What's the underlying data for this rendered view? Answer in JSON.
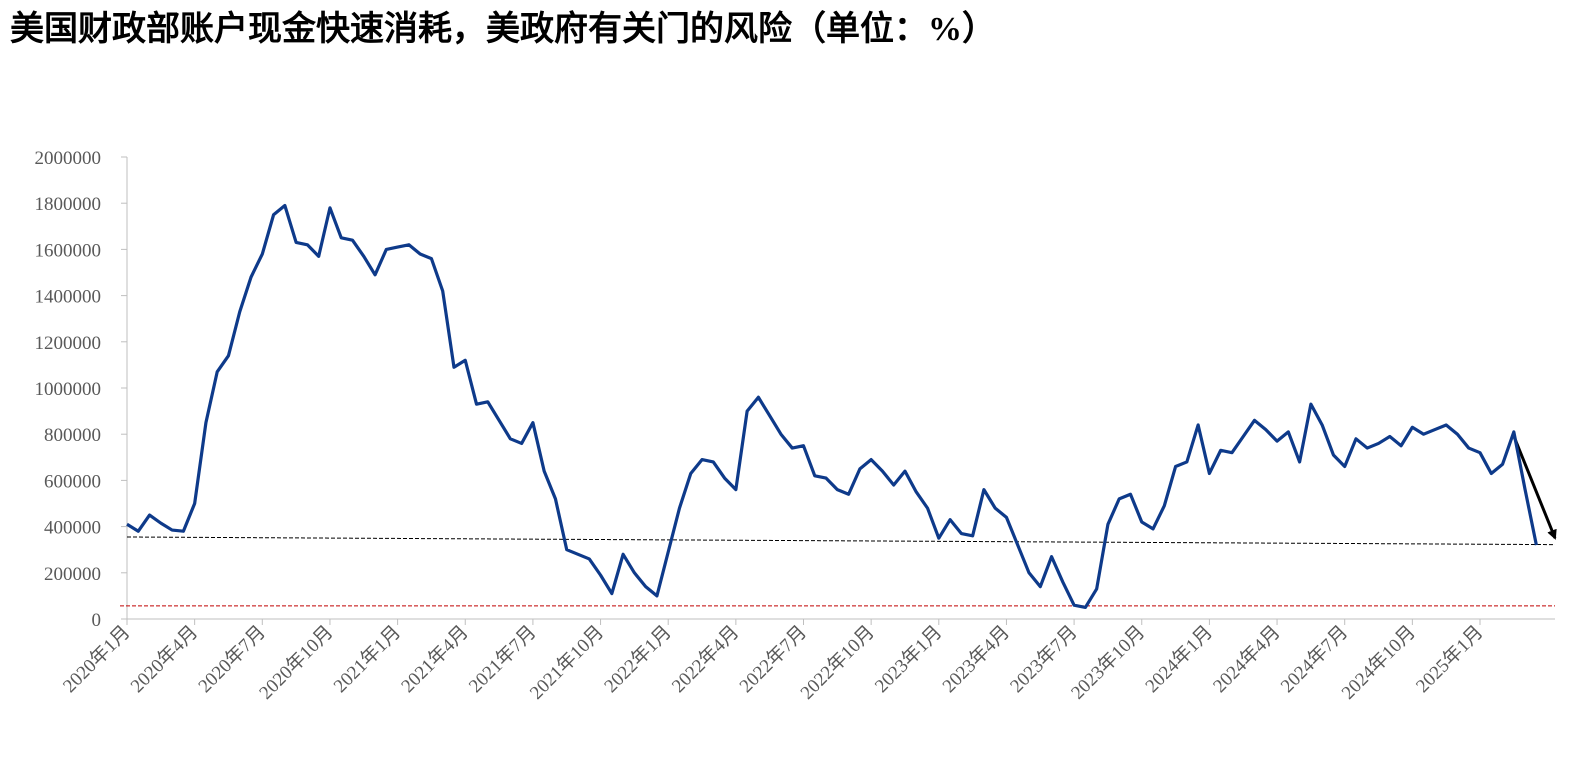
{
  "chart_data": {
    "type": "line",
    "title": "美国财政部账户现金快速消耗，美政府有关门的风险（单位：%）",
    "categories": [
      "2020年1月",
      null,
      null,
      null,
      null,
      null,
      "2020年4月",
      null,
      null,
      null,
      null,
      null,
      "2020年7月",
      null,
      null,
      null,
      null,
      null,
      "2020年10月",
      null,
      null,
      null,
      null,
      null,
      "2021年1月",
      null,
      null,
      null,
      null,
      null,
      "2021年4月",
      null,
      null,
      null,
      null,
      null,
      "2021年7月",
      null,
      null,
      null,
      null,
      null,
      "2021年10月",
      null,
      null,
      null,
      null,
      null,
      "2022年1月",
      null,
      null,
      null,
      null,
      null,
      "2022年4月",
      null,
      null,
      null,
      null,
      null,
      "2022年7月",
      null,
      null,
      null,
      null,
      null,
      "2022年10月",
      null,
      null,
      null,
      null,
      null,
      "2023年1月",
      null,
      null,
      null,
      null,
      null,
      "2023年4月",
      null,
      null,
      null,
      null,
      null,
      "2023年7月",
      null,
      null,
      null,
      null,
      null,
      "2023年10月",
      null,
      null,
      null,
      null,
      null,
      "2024年1月",
      null,
      null,
      null,
      null,
      null,
      "2024年4月",
      null,
      null,
      null,
      null,
      null,
      "2024年7月",
      null,
      null,
      null,
      null,
      null,
      "2024年10月",
      null,
      null,
      null,
      null,
      null,
      "2025年1月",
      null,
      null,
      null,
      null,
      null
    ],
    "values": [
      410000,
      380000,
      450000,
      415000,
      385000,
      380000,
      500000,
      850000,
      1070000,
      1140000,
      1330000,
      1480000,
      1580000,
      1750000,
      1790000,
      1630000,
      1620000,
      1570000,
      1780000,
      1650000,
      1640000,
      1570000,
      1490000,
      1600000,
      1610000,
      1620000,
      1580000,
      1560000,
      1420000,
      1090000,
      1120000,
      930000,
      940000,
      860000,
      780000,
      760000,
      850000,
      640000,
      520000,
      300000,
      280000,
      260000,
      190000,
      110000,
      280000,
      200000,
      140000,
      100000,
      290000,
      480000,
      630000,
      690000,
      680000,
      610000,
      560000,
      900000,
      960000,
      880000,
      800000,
      740000,
      750000,
      620000,
      610000,
      560000,
      540000,
      650000,
      690000,
      640000,
      580000,
      640000,
      550000,
      480000,
      350000,
      430000,
      370000,
      360000,
      560000,
      480000,
      440000,
      320000,
      200000,
      140000,
      270000,
      160000,
      60000,
      50000,
      130000,
      410000,
      520000,
      540000,
      420000,
      390000,
      490000,
      660000,
      680000,
      840000,
      630000,
      730000,
      720000,
      790000,
      860000,
      820000,
      770000,
      810000,
      680000,
      930000,
      840000,
      710000,
      660000,
      780000,
      740000,
      760000,
      790000,
      750000,
      830000,
      800000,
      820000,
      840000,
      800000,
      740000,
      720000,
      630000,
      670000,
      810000,
      560000,
      320000
    ],
    "color": "#0e3a8a",
    "ylim": [
      0,
      2000000
    ],
    "yticks": [
      0,
      200000,
      400000,
      600000,
      800000,
      1000000,
      1200000,
      1400000,
      1600000,
      1800000,
      2000000
    ],
    "trend_line": [
      355000,
      322000
    ],
    "threshold": 57000
  }
}
